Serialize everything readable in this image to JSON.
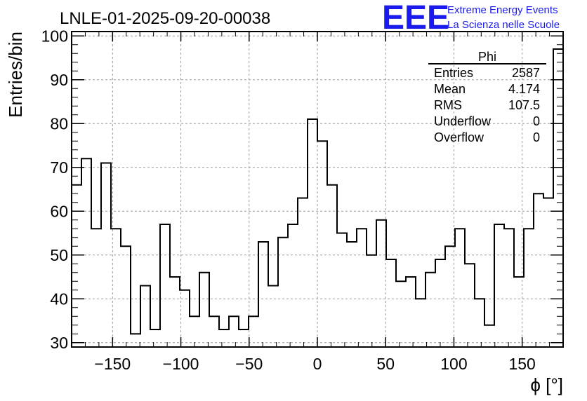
{
  "header": {
    "title": "LNLE-01-2025-09-20-00038",
    "logo_text": "EEE",
    "logo_line1": "Extreme Energy Events",
    "logo_line2": "La Scienza nelle Scuole",
    "logo_color": "#1a1aee"
  },
  "stats": {
    "name": "Phi",
    "rows": [
      {
        "label": "Entries",
        "value": "2587"
      },
      {
        "label": "Mean",
        "value": "4.174"
      },
      {
        "label": "RMS",
        "value": "107.5"
      },
      {
        "label": "Underflow",
        "value": "0"
      },
      {
        "label": "Overflow",
        "value": "0"
      }
    ]
  },
  "chart_data": {
    "type": "bar",
    "style": "step-histogram",
    "title": "LNLE-01-2025-09-20-00038",
    "xlabel": "ϕ [°]",
    "ylabel": "Entries/bin",
    "xlim": [
      -180,
      180
    ],
    "ylim": [
      29,
      101
    ],
    "bin_width": 7.2,
    "grid": true,
    "x_ticks": [
      -150,
      -100,
      -50,
      0,
      50,
      100,
      150
    ],
    "x_tick_labels": [
      "−150",
      "−100",
      "−50",
      "0",
      "50",
      "100",
      "150"
    ],
    "y_ticks": [
      30,
      40,
      50,
      60,
      70,
      80,
      90,
      100
    ],
    "y_tick_labels": [
      "30",
      "40",
      "50",
      "60",
      "70",
      "80",
      "90",
      "100"
    ],
    "line_color": "#000000",
    "values": [
      66,
      72,
      56,
      71,
      56,
      52,
      32,
      43,
      33,
      57,
      45,
      42,
      36,
      46,
      36,
      33,
      36,
      33,
      36,
      53,
      43,
      54,
      57,
      63,
      81,
      76,
      66,
      55,
      53,
      56,
      50,
      58,
      49,
      44,
      45,
      40,
      46,
      49,
      52,
      56,
      48,
      40,
      34,
      57,
      56,
      45,
      56,
      64,
      63,
      97
    ]
  }
}
